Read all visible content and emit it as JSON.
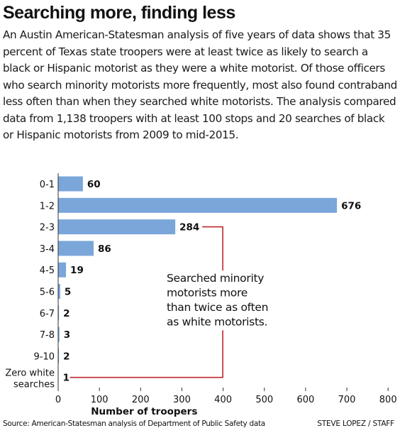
{
  "title": "Searching more, finding less",
  "description": "An Austin American-Statesman analysis of five years of data shows that 35 percent of Texas state troopers were at least twice as likely to search a black or Hispanic motorist as they were a white motorist. Of those officers who search minority motorists more frequently, most also found contraband less often than when they searched white motorists. The analysis compared data from 1,138 troopers with at least 100 stops and 20 searches of black or Hispanic motorists from 2009 to mid-2015.",
  "source": "Source: American-Statesman analysis of Department of Public Safety data",
  "credit": "STEVE LOPEZ / STAFF",
  "colors": {
    "bar": "#7aa6da",
    "annotation_line": "#c0272d",
    "text": "#111111"
  },
  "chart_data": {
    "type": "bar",
    "orientation": "horizontal",
    "categories": [
      "0-1",
      "1-2",
      "2-3",
      "3-4",
      "4-5",
      "5-6",
      "6-7",
      "7-8",
      "9-10",
      "Zero white searches"
    ],
    "category_lines": [
      [
        "0-1"
      ],
      [
        "1-2"
      ],
      [
        "2-3"
      ],
      [
        "3-4"
      ],
      [
        "4-5"
      ],
      [
        "5-6"
      ],
      [
        "6-7"
      ],
      [
        "7-8"
      ],
      [
        "9-10"
      ],
      [
        "Zero white",
        "searches"
      ]
    ],
    "values": [
      60,
      676,
      284,
      86,
      19,
      5,
      2,
      3,
      2,
      1
    ],
    "value_labels": [
      "60",
      "676",
      "284",
      "86",
      "19",
      "5",
      "2",
      "3",
      "2",
      "1"
    ],
    "xlabel": "Number of troopers",
    "ylabel": "",
    "xlim": [
      0,
      800
    ],
    "xticks": [
      0,
      100,
      200,
      300,
      400,
      500,
      600,
      700,
      800
    ],
    "grid": false,
    "annotation": {
      "text_lines": [
        "Searched minority",
        "motorists more",
        "than twice as often",
        "as white motorists."
      ],
      "bracket_from_category": "2-3",
      "bracket_to_category": "Zero white searches",
      "bracket_x_value": 400
    }
  }
}
